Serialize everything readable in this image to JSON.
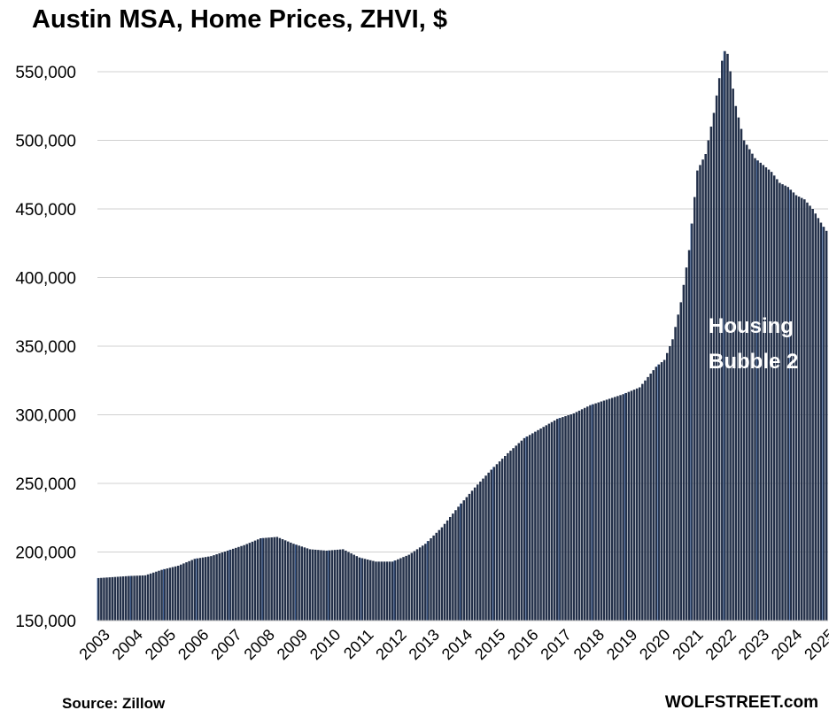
{
  "chart_data": {
    "type": "bar",
    "title": "Austin MSA, Home Prices, ZHVI, $",
    "xlabel": "",
    "ylabel": "",
    "ylim": [
      150000,
      570000
    ],
    "yticks": [
      150000,
      200000,
      250000,
      300000,
      350000,
      400000,
      450000,
      500000,
      550000
    ],
    "ytick_labels": [
      "150,000",
      "200,000",
      "250,000",
      "300,000",
      "350,000",
      "400,000",
      "450,000",
      "500,000",
      "550,000"
    ],
    "xtick_labels": [
      "2003",
      "2004",
      "2005",
      "2006",
      "2007",
      "2008",
      "2009",
      "2010",
      "2011",
      "2012",
      "2013",
      "2014",
      "2015",
      "2016",
      "2017",
      "2018",
      "2019",
      "2020",
      "2021",
      "2022",
      "2023",
      "2024",
      "2025"
    ],
    "grid": "horizontal",
    "bar_color": "#233049",
    "annotation": [
      "Housing",
      "Bubble 2"
    ],
    "anchors": [
      [
        "2003-01",
        181000
      ],
      [
        "2003-12",
        182500
      ],
      [
        "2004-06",
        183000
      ],
      [
        "2004-12",
        187000
      ],
      [
        "2005-06",
        190000
      ],
      [
        "2005-12",
        195000
      ],
      [
        "2006-06",
        197000
      ],
      [
        "2006-12",
        201000
      ],
      [
        "2007-06",
        205000
      ],
      [
        "2007-12",
        210000
      ],
      [
        "2008-06",
        211000
      ],
      [
        "2008-12",
        206000
      ],
      [
        "2009-06",
        202000
      ],
      [
        "2009-12",
        201000
      ],
      [
        "2010-06",
        202000
      ],
      [
        "2010-12",
        196000
      ],
      [
        "2011-06",
        193000
      ],
      [
        "2011-12",
        193000
      ],
      [
        "2012-06",
        198000
      ],
      [
        "2012-12",
        206000
      ],
      [
        "2013-06",
        218000
      ],
      [
        "2013-12",
        233000
      ],
      [
        "2014-06",
        247000
      ],
      [
        "2014-12",
        260000
      ],
      [
        "2015-06",
        272000
      ],
      [
        "2015-12",
        283000
      ],
      [
        "2016-06",
        290000
      ],
      [
        "2016-12",
        297000
      ],
      [
        "2017-06",
        301000
      ],
      [
        "2017-12",
        307000
      ],
      [
        "2018-06",
        311000
      ],
      [
        "2018-12",
        315000
      ],
      [
        "2019-06",
        320000
      ],
      [
        "2019-12",
        335000
      ],
      [
        "2020-03",
        340000
      ],
      [
        "2020-06",
        355000
      ],
      [
        "2020-09",
        382000
      ],
      [
        "2020-12",
        420000
      ],
      [
        "2021-03",
        478000
      ],
      [
        "2021-06",
        490000
      ],
      [
        "2021-09",
        520000
      ],
      [
        "2021-12",
        558000
      ],
      [
        "2022-01",
        565000
      ],
      [
        "2022-02",
        563000
      ],
      [
        "2022-05",
        525000
      ],
      [
        "2022-08",
        500000
      ],
      [
        "2022-12",
        487000
      ],
      [
        "2023-06",
        477000
      ],
      [
        "2023-09",
        469000
      ],
      [
        "2023-12",
        466000
      ],
      [
        "2024-03",
        460000
      ],
      [
        "2024-06",
        457000
      ],
      [
        "2024-09",
        450000
      ],
      [
        "2024-12",
        440000
      ],
      [
        "2025-02",
        434000
      ]
    ]
  },
  "source_label": "Source: Zillow",
  "watermark": "WOLFSTREET.com"
}
